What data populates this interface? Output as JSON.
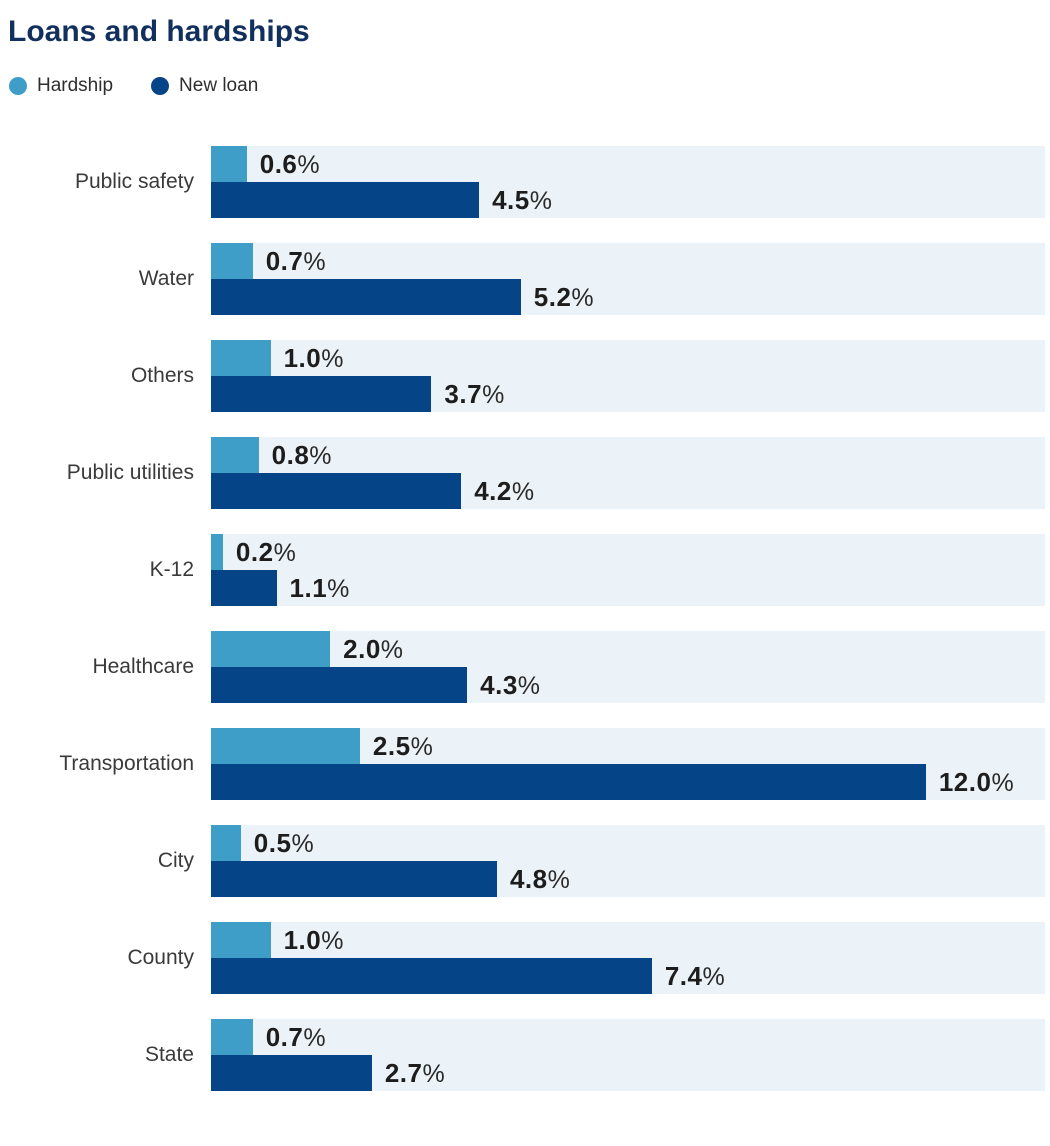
{
  "title": "Loans and hardships",
  "legend": [
    {
      "label": "Hardship",
      "color": "#3f9ec7"
    },
    {
      "label": "New loan",
      "color": "#054486"
    }
  ],
  "colors": {
    "hardship": "#3f9ec7",
    "new_loan": "#054486",
    "row_band": "#ebf3f8",
    "title_text": "#12305e"
  },
  "chart_data": {
    "type": "bar",
    "orientation": "horizontal",
    "title": "Loans and hardships",
    "categories": [
      "Public safety",
      "Water",
      "Others",
      "Public utilities",
      "K-12",
      "Healthcare",
      "Transportation",
      "City",
      "County",
      "State"
    ],
    "series": [
      {
        "name": "Hardship",
        "values": [
          0.6,
          0.7,
          1.0,
          0.8,
          0.2,
          2.0,
          2.5,
          0.5,
          1.0,
          0.7
        ]
      },
      {
        "name": "New loan",
        "values": [
          4.5,
          5.2,
          3.7,
          4.2,
          1.1,
          4.3,
          12.0,
          4.8,
          7.4,
          2.7
        ]
      }
    ],
    "value_suffix": "%",
    "value_decimals": 1,
    "xlim": [
      0,
      14
    ],
    "grid": false,
    "axis_labels_shown": false,
    "value_labels": true,
    "legend_position": "top-left"
  }
}
